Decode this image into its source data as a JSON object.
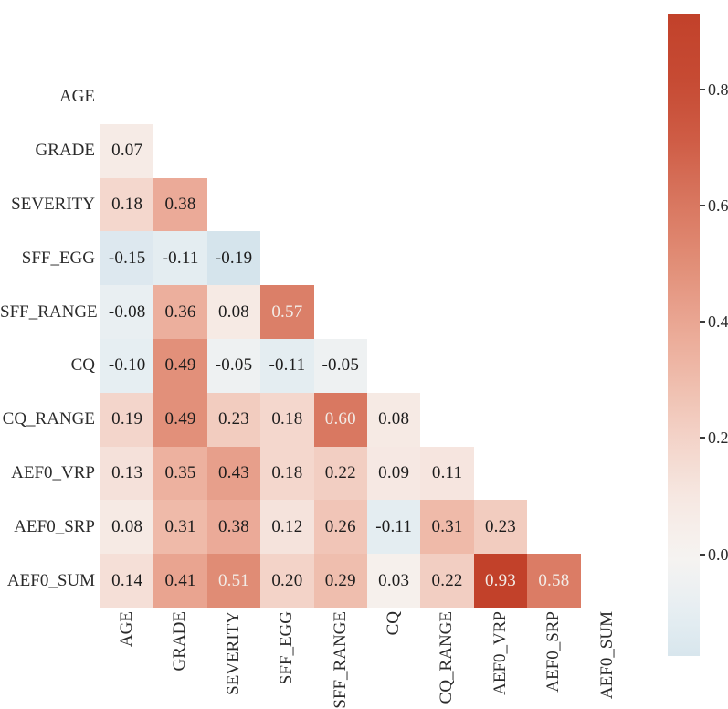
{
  "chart_data": {
    "type": "heatmap",
    "title": "",
    "xlabel": "",
    "ylabel": "",
    "shape": "lower-triangular correlation matrix, diagonal empty",
    "variables": [
      "AGE",
      "GRADE",
      "SEVERITY",
      "SFF_EGG",
      "SFF_RANGE",
      "CQ",
      "CQ_RANGE",
      "AEF0_VRP",
      "AEF0_SRP",
      "AEF0_SUM"
    ],
    "rows": [
      {
        "label": "AGE",
        "values": []
      },
      {
        "label": "GRADE",
        "values": [
          0.07
        ]
      },
      {
        "label": "SEVERITY",
        "values": [
          0.18,
          0.38
        ]
      },
      {
        "label": "SFF_EGG",
        "values": [
          -0.15,
          -0.11,
          -0.19
        ]
      },
      {
        "label": "SFF_RANGE",
        "values": [
          -0.08,
          0.36,
          0.08,
          0.57
        ]
      },
      {
        "label": "CQ",
        "values": [
          -0.1,
          0.49,
          -0.05,
          -0.11,
          -0.05
        ]
      },
      {
        "label": "CQ_RANGE",
        "values": [
          0.19,
          0.49,
          0.23,
          0.18,
          0.6,
          0.08
        ]
      },
      {
        "label": "AEF0_VRP",
        "values": [
          0.13,
          0.35,
          0.43,
          0.18,
          0.22,
          0.09,
          0.11
        ]
      },
      {
        "label": "AEF0_SRP",
        "values": [
          0.08,
          0.31,
          0.38,
          0.12,
          0.26,
          -0.11,
          0.31,
          0.23
        ]
      },
      {
        "label": "AEF0_SUM",
        "values": [
          0.14,
          0.41,
          0.51,
          0.2,
          0.29,
          0.03,
          0.22,
          0.93,
          0.58
        ]
      }
    ],
    "colorbar": {
      "vmin": -0.175,
      "vmax": 0.93,
      "ticks": [
        0.8,
        0.6,
        0.4,
        0.2,
        0.0
      ],
      "tick_labels": [
        "0.8",
        "0.6",
        "0.4",
        "0.2",
        "0.0"
      ]
    },
    "colors": {
      "annotation_dark": "#1c1c1c",
      "annotation_light": "#f2ece7",
      "white_text_threshold": 0.5,
      "background": "#ffffff",
      "colormap_stops": [
        {
          "v": -0.19,
          "c": "#d5e4ec"
        },
        {
          "v": -0.1,
          "c": "#e6eef2"
        },
        {
          "v": 0.0,
          "c": "#f6f4f1"
        },
        {
          "v": 0.1,
          "c": "#f6e7e1"
        },
        {
          "v": 0.2,
          "c": "#f3d3c8"
        },
        {
          "v": 0.3,
          "c": "#efbcab"
        },
        {
          "v": 0.4,
          "c": "#eaa693"
        },
        {
          "v": 0.5,
          "c": "#e18e77"
        },
        {
          "v": 0.6,
          "c": "#d97861"
        },
        {
          "v": 0.7,
          "c": "#d05f48"
        },
        {
          "v": 0.8,
          "c": "#c74c35"
        },
        {
          "v": 0.93,
          "c": "#c2412a"
        }
      ]
    }
  }
}
